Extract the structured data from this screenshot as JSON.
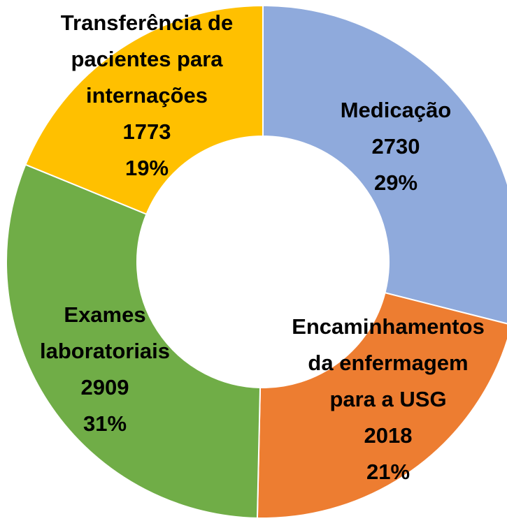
{
  "chart_data": {
    "type": "donut",
    "categories": [
      [
        "Medicação"
      ],
      [
        "Encaminhamentos",
        "da enfermagem",
        "para a USG"
      ],
      [
        "Exames",
        "laboratoriais"
      ],
      [
        "Transferência de",
        "pacientes para",
        "internações"
      ]
    ],
    "values": [
      2730,
      2018,
      2909,
      1773
    ],
    "percent_labels": [
      "29%",
      "21%",
      "31%",
      "19%"
    ],
    "colors": [
      "#8faadc",
      "#ed7d31",
      "#70ad47",
      "#ffc000"
    ]
  }
}
